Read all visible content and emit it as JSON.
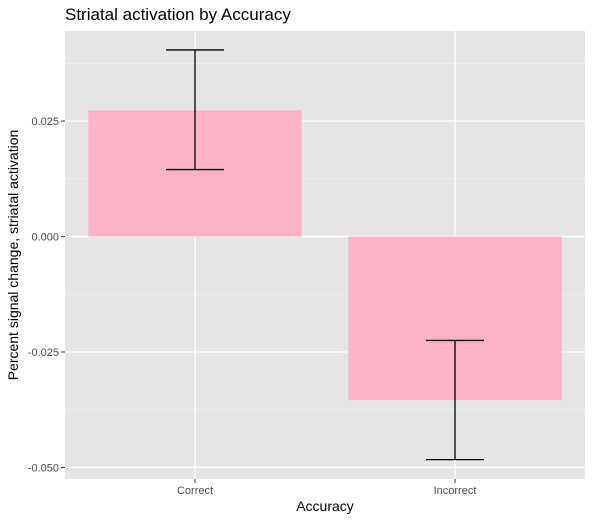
{
  "chart_data": {
    "type": "bar",
    "title": "Striatal activation by Accuracy",
    "xlabel": "Accuracy",
    "ylabel": "Percent signal change, striatal activation",
    "categories": [
      "Correct",
      "Incorrect"
    ],
    "values": [
      0.0273,
      -0.0354
    ],
    "error_low": [
      0.0145,
      -0.0483
    ],
    "error_high": [
      0.0404,
      -0.0225
    ],
    "ylim": [
      -0.0525,
      0.0445
    ],
    "yticks": [
      -0.05,
      -0.025,
      0.0,
      0.025
    ],
    "ytick_labels": [
      "-0.050",
      "-0.025",
      "0.000",
      "0.025"
    ],
    "grid": true,
    "colors": {
      "bar_fill": "#ffb3c6",
      "panel_bg": "#e5e5e5",
      "grid_major": "#ffffff",
      "grid_minor": "#f2f2f2",
      "error_bar": "#000000"
    }
  }
}
